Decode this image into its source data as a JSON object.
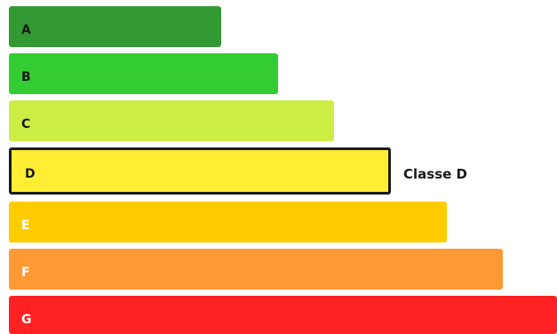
{
  "classes": [
    {
      "letter": "A",
      "color": "#339933",
      "text_color": "#1a1a1a"
    },
    {
      "letter": "B",
      "color": "#33cc33",
      "text_color": "#1a1a1a"
    },
    {
      "letter": "C",
      "color": "#ccee44",
      "text_color": "#1a1a1a"
    },
    {
      "letter": "D",
      "color": "#ffee33",
      "text_color": "#1a1a1a"
    },
    {
      "letter": "E",
      "color": "#ffcc00",
      "text_color": "#ffffff"
    },
    {
      "letter": "F",
      "color": "#ff9933",
      "text_color": "#ffffff"
    },
    {
      "letter": "G",
      "color": "#ff2222",
      "text_color": "#ffffff"
    }
  ],
  "selected_class": "D",
  "selected_label": "Classe D"
}
